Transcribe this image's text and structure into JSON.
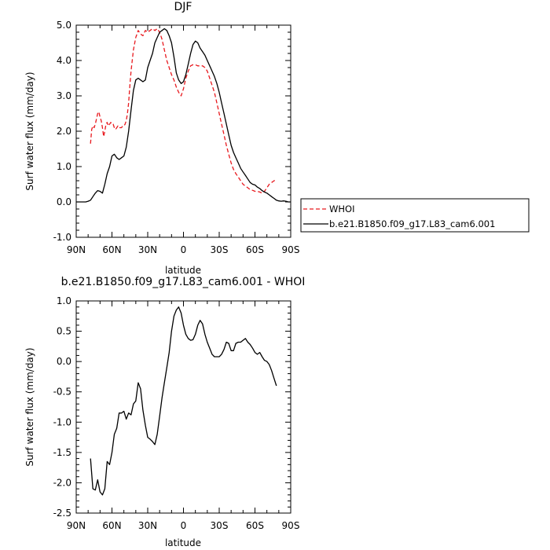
{
  "chart_data": [
    {
      "type": "line",
      "title": "DJF",
      "xlabel": "latitude",
      "ylabel": "Surf water flux (mm/day)",
      "xlim": [
        90,
        -90
      ],
      "ylim": [
        -1.0,
        5.0
      ],
      "x_ticks": [
        90,
        60,
        30,
        0,
        -30,
        -60,
        -90
      ],
      "x_tick_labels": [
        "90N",
        "60N",
        "30N",
        "0",
        "30S",
        "60S",
        "90S"
      ],
      "y_ticks": [
        -1.0,
        0.0,
        1.0,
        2.0,
        3.0,
        4.0,
        5.0
      ],
      "y_tick_labels": [
        "-1.0",
        "0.0",
        "1.0",
        "2.0",
        "3.0",
        "4.0",
        "5.0"
      ],
      "legend_position": "right",
      "series": [
        {
          "name": "WHOI",
          "color": "#e8191e",
          "dash": "dashed",
          "x": [
            78,
            77,
            76,
            75,
            74,
            73,
            72,
            71,
            70,
            69,
            68,
            67,
            66,
            65,
            64,
            63,
            62,
            61,
            60,
            59,
            58,
            57,
            56,
            55,
            54,
            53,
            52,
            51,
            50,
            49,
            48,
            47,
            46,
            45,
            44,
            42,
            40,
            38,
            36,
            34,
            32,
            30,
            28,
            26,
            24,
            22,
            20,
            18,
            16,
            14,
            12,
            10,
            8,
            6,
            4,
            2,
            0,
            -2,
            -4,
            -6,
            -8,
            -10,
            -12,
            -14,
            -16,
            -18,
            -20,
            -22,
            -24,
            -26,
            -28,
            -30,
            -32,
            -34,
            -36,
            -38,
            -40,
            -42,
            -44,
            -46,
            -48,
            -50,
            -52,
            -54,
            -56,
            -58,
            -60,
            -62,
            -64,
            -66,
            -68,
            -70,
            -72,
            -74,
            -76,
            -78
          ],
          "y": [
            1.65,
            2.05,
            2.15,
            2.1,
            2.2,
            2.35,
            2.5,
            2.55,
            2.4,
            2.3,
            2.1,
            1.85,
            2.0,
            2.2,
            2.25,
            2.15,
            2.2,
            2.25,
            2.2,
            2.2,
            2.1,
            2.05,
            2.1,
            2.15,
            2.1,
            2.1,
            2.1,
            2.15,
            2.15,
            2.2,
            2.3,
            2.5,
            2.8,
            3.3,
            3.7,
            4.3,
            4.65,
            4.85,
            4.75,
            4.7,
            4.85,
            4.8,
            4.85,
            4.9,
            4.85,
            4.9,
            4.8,
            4.6,
            4.3,
            4.0,
            3.8,
            3.6,
            3.45,
            3.25,
            3.1,
            3.0,
            3.2,
            3.5,
            3.7,
            3.85,
            3.88,
            3.88,
            3.85,
            3.85,
            3.85,
            3.8,
            3.7,
            3.5,
            3.3,
            3.1,
            2.8,
            2.5,
            2.2,
            1.9,
            1.6,
            1.35,
            1.1,
            0.92,
            0.8,
            0.7,
            0.6,
            0.5,
            0.45,
            0.4,
            0.35,
            0.33,
            0.3,
            0.3,
            0.28,
            0.25,
            0.3,
            0.4,
            0.5,
            0.55,
            0.6,
            0.62
          ]
        },
        {
          "name": "b.e21.B1850.f09_g17.L83_cam6.001",
          "color": "#000000",
          "dash": "solid",
          "x": [
            90,
            86,
            82,
            80,
            78,
            76,
            74,
            72,
            70,
            68,
            66,
            64,
            62,
            60,
            58,
            56,
            54,
            52,
            50,
            48,
            46,
            44,
            42,
            40,
            38,
            36,
            34,
            32,
            30,
            28,
            26,
            24,
            22,
            20,
            18,
            16,
            14,
            12,
            10,
            8,
            6,
            4,
            2,
            0,
            -2,
            -4,
            -6,
            -8,
            -10,
            -12,
            -14,
            -16,
            -18,
            -20,
            -22,
            -24,
            -26,
            -28,
            -30,
            -32,
            -34,
            -36,
            -38,
            -40,
            -42,
            -44,
            -46,
            -48,
            -50,
            -52,
            -54,
            -56,
            -58,
            -60,
            -62,
            -64,
            -66,
            -68,
            -70,
            -72,
            -74,
            -76,
            -78,
            -80,
            -82,
            -84,
            -86,
            -88,
            -90
          ],
          "y": [
            0.0,
            0.0,
            0.0,
            0.02,
            0.05,
            0.15,
            0.25,
            0.32,
            0.3,
            0.25,
            0.5,
            0.8,
            1.0,
            1.3,
            1.35,
            1.25,
            1.2,
            1.25,
            1.3,
            1.55,
            2.0,
            2.6,
            3.15,
            3.45,
            3.5,
            3.45,
            3.4,
            3.45,
            3.8,
            4.0,
            4.2,
            4.5,
            4.65,
            4.8,
            4.85,
            4.9,
            4.85,
            4.7,
            4.5,
            4.1,
            3.65,
            3.45,
            3.35,
            3.4,
            3.6,
            3.9,
            4.2,
            4.45,
            4.55,
            4.5,
            4.35,
            4.25,
            4.15,
            4.0,
            3.85,
            3.7,
            3.55,
            3.35,
            3.1,
            2.8,
            2.5,
            2.2,
            1.9,
            1.6,
            1.4,
            1.25,
            1.1,
            0.95,
            0.85,
            0.75,
            0.65,
            0.55,
            0.5,
            0.48,
            0.42,
            0.38,
            0.32,
            0.28,
            0.25,
            0.2,
            0.15,
            0.1,
            0.05,
            0.03,
            0.02,
            0.03,
            0.02,
            0.0,
            0.0
          ]
        }
      ]
    },
    {
      "type": "line",
      "title": "b.e21.B1850.f09_g17.L83_cam6.001 - WHOI",
      "xlabel": "latitude",
      "ylabel": "Surf water flux (mm/day)",
      "xlim": [
        90,
        -90
      ],
      "ylim": [
        -2.5,
        1.0
      ],
      "x_ticks": [
        90,
        60,
        30,
        0,
        -30,
        -60,
        -90
      ],
      "x_tick_labels": [
        "90N",
        "60N",
        "30N",
        "0",
        "30S",
        "60S",
        "90S"
      ],
      "y_ticks": [
        -2.5,
        -2.0,
        -1.5,
        -1.0,
        -0.5,
        0.0,
        0.5,
        1.0
      ],
      "y_tick_labels": [
        "-2.5",
        "-2.0",
        "-1.5",
        "-1.0",
        "-0.5",
        "0.0",
        "0.5",
        "1.0"
      ],
      "series": [
        {
          "color": "#000000",
          "dash": "solid",
          "x": [
            78,
            76,
            74,
            72,
            70,
            68,
            66,
            64,
            62,
            60,
            58,
            56,
            54,
            52,
            50,
            48,
            46,
            44,
            42,
            40,
            38,
            36,
            34,
            32,
            30,
            28,
            26,
            24,
            22,
            20,
            18,
            16,
            14,
            12,
            10,
            8,
            6,
            4,
            2,
            0,
            -2,
            -4,
            -6,
            -8,
            -10,
            -12,
            -14,
            -16,
            -18,
            -20,
            -22,
            -24,
            -26,
            -28,
            -30,
            -32,
            -34,
            -36,
            -38,
            -40,
            -42,
            -44,
            -46,
            -48,
            -50,
            -52,
            -54,
            -56,
            -58,
            -60,
            -62,
            -64,
            -66,
            -68,
            -70,
            -72,
            -74,
            -76,
            -78
          ],
          "y": [
            -1.6,
            -2.1,
            -2.12,
            -1.95,
            -2.15,
            -2.2,
            -2.1,
            -1.65,
            -1.7,
            -1.5,
            -1.2,
            -1.1,
            -0.85,
            -0.85,
            -0.82,
            -0.95,
            -0.85,
            -0.88,
            -0.7,
            -0.65,
            -0.35,
            -0.45,
            -0.8,
            -1.05,
            -1.25,
            -1.28,
            -1.32,
            -1.37,
            -1.2,
            -0.9,
            -0.6,
            -0.35,
            -0.1,
            0.15,
            0.5,
            0.75,
            0.85,
            0.9,
            0.8,
            0.6,
            0.45,
            0.38,
            0.35,
            0.36,
            0.45,
            0.6,
            0.68,
            0.62,
            0.45,
            0.32,
            0.22,
            0.12,
            0.08,
            0.08,
            0.08,
            0.12,
            0.2,
            0.32,
            0.3,
            0.18,
            0.18,
            0.3,
            0.32,
            0.32,
            0.35,
            0.38,
            0.32,
            0.28,
            0.22,
            0.15,
            0.12,
            0.15,
            0.08,
            0.02,
            0.0,
            -0.05,
            -0.15,
            -0.28,
            -0.4
          ]
        }
      ]
    }
  ]
}
